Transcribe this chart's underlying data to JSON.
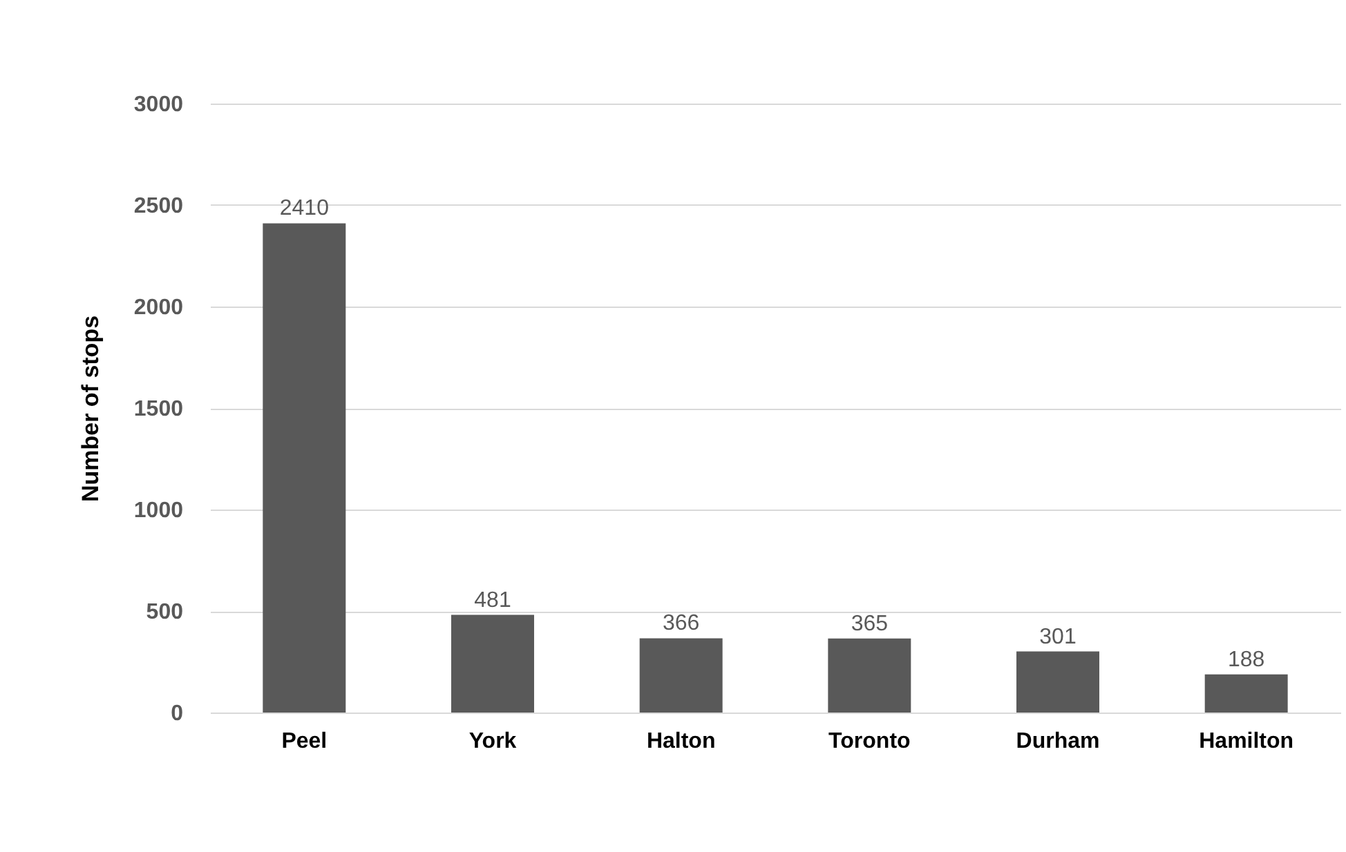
{
  "chart_data": {
    "type": "bar",
    "ylabel": "Number of stops",
    "categories": [
      "Peel",
      "York",
      "Halton",
      "Toronto",
      "Durham",
      "Hamilton"
    ],
    "values": [
      2410,
      481,
      366,
      365,
      301,
      188
    ],
    "color": "#595959",
    "ylim": [
      0,
      3000
    ],
    "yticks": [
      0,
      500,
      1000,
      1500,
      2000,
      2500,
      3000
    ],
    "grid": "y",
    "data_labels": true
  }
}
